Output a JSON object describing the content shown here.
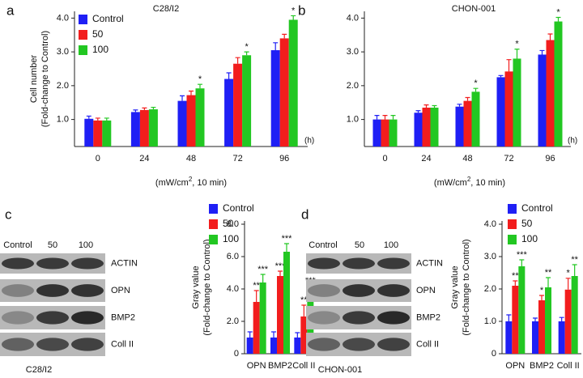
{
  "chart_data": [
    {
      "type": "bar",
      "panel_label": "a",
      "title": "C28/I2",
      "y_label": [
        "Cell number",
        "(Fold-change to Control)"
      ],
      "x_label": {
        "prefix": "(mW/cm",
        "sup": "2",
        "suffix": ", 10 min)"
      },
      "x_unit": "(h)",
      "categories": [
        "0",
        "24",
        "48",
        "72",
        "96"
      ],
      "series": [
        {
          "name": "Control",
          "color": "#1f1ff5",
          "values": [
            1.02,
            1.22,
            1.55,
            2.2,
            3.05
          ],
          "errors": [
            0.08,
            0.06,
            0.15,
            0.18,
            0.22
          ],
          "annotations": [
            null,
            null,
            null,
            null,
            null
          ]
        },
        {
          "name": "50",
          "color": "#f21d1d",
          "values": [
            0.97,
            1.28,
            1.72,
            2.65,
            3.4
          ],
          "errors": [
            0.07,
            0.06,
            0.12,
            0.18,
            0.12
          ],
          "annotations": [
            null,
            null,
            null,
            null,
            null
          ]
        },
        {
          "name": "100",
          "color": "#22c722",
          "values": [
            0.97,
            1.3,
            1.92,
            2.9,
            3.95
          ],
          "errors": [
            0.07,
            0.06,
            0.12,
            0.1,
            0.12
          ],
          "annotations": [
            null,
            null,
            "*",
            "*",
            "*"
          ]
        }
      ],
      "ylim": [
        0.2,
        4.2
      ],
      "yticks": [
        {
          "value": 1,
          "label": "1.0"
        },
        {
          "value": 2,
          "label": "2.0"
        },
        {
          "value": 3,
          "label": "3.0"
        },
        {
          "value": 4,
          "label": "4.0"
        }
      ],
      "legend": "upper-left"
    },
    {
      "type": "bar",
      "panel_label": "b",
      "title": "CHON-001",
      "y_label": [],
      "x_label": {
        "prefix": "(mW/cm",
        "sup": "2",
        "suffix": ", 10 min)"
      },
      "x_unit": "(h)",
      "categories": [
        "0",
        "24",
        "48",
        "72",
        "96"
      ],
      "series": [
        {
          "name": "Control",
          "color": "#1f1ff5",
          "values": [
            1.0,
            1.2,
            1.38,
            2.25,
            2.92
          ],
          "errors": [
            0.12,
            0.06,
            0.07,
            0.05,
            0.12
          ],
          "annotations": [
            null,
            null,
            null,
            null,
            null
          ]
        },
        {
          "name": "50",
          "color": "#f21d1d",
          "values": [
            1.0,
            1.35,
            1.55,
            2.42,
            3.35
          ],
          "errors": [
            0.12,
            0.08,
            0.1,
            0.35,
            0.18
          ],
          "annotations": [
            null,
            null,
            null,
            null,
            null
          ]
        },
        {
          "name": "100",
          "color": "#22c722",
          "values": [
            1.0,
            1.35,
            1.82,
            2.8,
            3.9
          ],
          "errors": [
            0.12,
            0.06,
            0.1,
            0.28,
            0.12
          ],
          "annotations": [
            null,
            null,
            "*",
            "*",
            "*"
          ]
        }
      ],
      "ylim": [
        0.2,
        4.2
      ],
      "yticks": [
        {
          "value": 1,
          "label": "1.0"
        },
        {
          "value": 2,
          "label": "2.0"
        },
        {
          "value": 3,
          "label": "3.0"
        },
        {
          "value": 4,
          "label": "4.0"
        }
      ],
      "legend": "none"
    },
    {
      "type": "bar",
      "panel_label": "c",
      "y_label": [
        "Gray value",
        "(Fold-change to Control)"
      ],
      "categories": [
        "OPN",
        "BMP2",
        "Coll II"
      ],
      "series": [
        {
          "name": "Control",
          "color": "#1f1ff5",
          "values": [
            1.0,
            1.0,
            1.0
          ],
          "errors": [
            0.35,
            0.35,
            0.3
          ],
          "annotations": [
            null,
            null,
            null
          ]
        },
        {
          "name": "50",
          "color": "#f21d1d",
          "values": [
            3.2,
            4.8,
            2.3
          ],
          "errors": [
            0.7,
            0.3,
            0.7
          ],
          "annotations": [
            "**",
            "***",
            "**"
          ]
        },
        {
          "name": "100",
          "color": "#22c722",
          "values": [
            4.4,
            6.3,
            3.8
          ],
          "errors": [
            0.5,
            0.5,
            0.4
          ],
          "annotations": [
            "***",
            "***",
            "***"
          ]
        }
      ],
      "ylim": [
        0,
        8.2
      ],
      "yticks": [
        0,
        {
          "value": 2,
          "label": "2.0"
        },
        {
          "value": 4,
          "label": "4.0"
        },
        {
          "value": 6,
          "label": "6.0"
        },
        {
          "value": 8,
          "label": "8.0"
        }
      ],
      "legend": "upper-left"
    },
    {
      "type": "bar",
      "panel_label": "d",
      "y_label": [
        "Gray value",
        "(Fold-change to Control)"
      ],
      "categories": [
        "OPN",
        "BMP2",
        "Coll II"
      ],
      "series": [
        {
          "name": "Control",
          "color": "#1f1ff5",
          "values": [
            1.0,
            1.0,
            1.0
          ],
          "errors": [
            0.2,
            0.1,
            0.12
          ],
          "annotations": [
            null,
            null,
            null
          ]
        },
        {
          "name": "50",
          "color": "#f21d1d",
          "values": [
            2.1,
            1.65,
            1.98
          ],
          "errors": [
            0.15,
            0.15,
            0.35
          ],
          "annotations": [
            "**",
            "*",
            "*"
          ]
        },
        {
          "name": "100",
          "color": "#22c722",
          "values": [
            2.7,
            2.05,
            2.4
          ],
          "errors": [
            0.2,
            0.3,
            0.35
          ],
          "annotations": [
            "***",
            "**",
            "**"
          ]
        }
      ],
      "ylim": [
        0,
        4.1
      ],
      "yticks": [
        0,
        {
          "value": 1,
          "label": "1.0"
        },
        {
          "value": 2,
          "label": "2.0"
        },
        {
          "value": 3,
          "label": "3.0"
        },
        {
          "value": 4,
          "label": "4.0"
        }
      ],
      "legend": "upper-left"
    }
  ],
  "blots": [
    {
      "lanes": [
        "Control",
        "50",
        "100"
      ],
      "rows": [
        "ACTIN",
        "OPN",
        "BMP2",
        "Coll II"
      ],
      "caption": "C28/I2"
    },
    {
      "lanes": [
        "Control",
        "50",
        "100"
      ],
      "rows": [
        "ACTIN",
        "OPN",
        "BMP2",
        "Coll II"
      ],
      "caption": "CHON-001"
    }
  ]
}
